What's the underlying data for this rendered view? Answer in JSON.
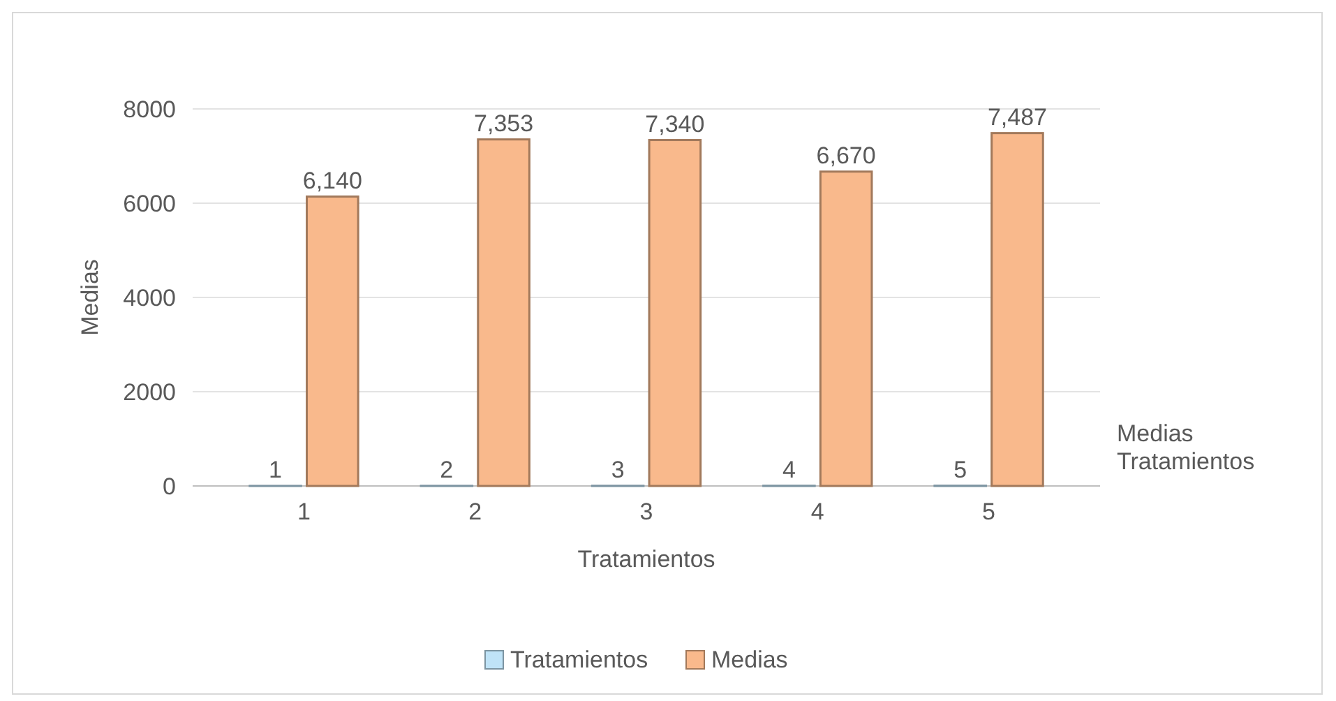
{
  "chart_data": {
    "type": "bar",
    "xlabel": "Tratamientos",
    "ylabel": "Medias",
    "categories": [
      "1",
      "2",
      "3",
      "4",
      "5"
    ],
    "series": [
      {
        "name": "Tratamientos",
        "color": "#bfe3f7",
        "values": [
          1,
          2,
          3,
          4,
          5
        ],
        "value_labels": [
          "1",
          "2",
          "3",
          "4",
          "5"
        ]
      },
      {
        "name": "Medias",
        "color": "#f9b98c",
        "values": [
          6140,
          7353,
          7340,
          6670,
          7487
        ],
        "value_labels": [
          "6,140",
          "7,353",
          "7,340",
          "6,670",
          "7,487"
        ]
      }
    ],
    "ylim": [
      0,
      8000
    ],
    "yticks": [
      0,
      2000,
      4000,
      6000,
      8000
    ],
    "grid": "y",
    "legend": "bottom"
  }
}
